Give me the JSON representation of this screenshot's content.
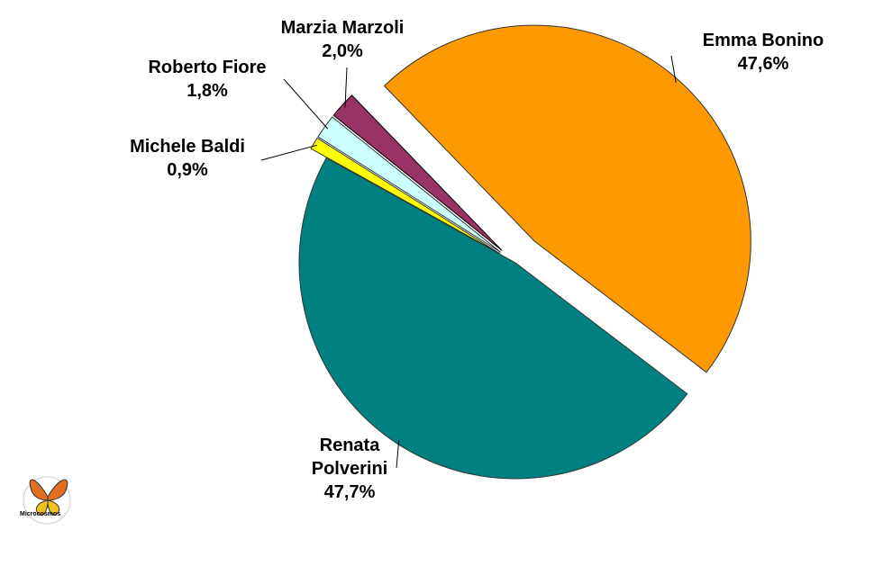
{
  "chart_data": {
    "type": "pie",
    "categories": [
      "Emma Bonino",
      "Renata Polverini",
      "Michele Baldi",
      "Roberto Fiore",
      "Marzia Marzoli"
    ],
    "values": [
      47.6,
      47.7,
      0.9,
      1.8,
      2.0
    ],
    "value_labels": [
      "47,6%",
      "47,7%",
      "0,9%",
      "1,8%",
      "2,0%"
    ],
    "colors": [
      "#FF9900",
      "#008080",
      "#FFFF00",
      "#CCFFFF",
      "#993366"
    ],
    "logo": "Microcosmos"
  }
}
